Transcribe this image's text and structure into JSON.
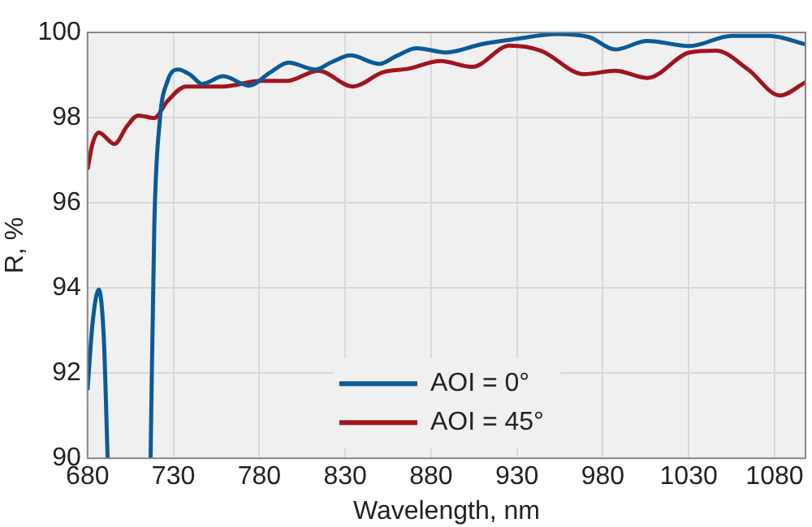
{
  "chart_data": {
    "type": "line",
    "xlabel": "Wavelength, nm",
    "ylabel": "R, %",
    "xlim": [
      680,
      1098
    ],
    "xticks": [
      680,
      730,
      780,
      830,
      880,
      930,
      980,
      1030,
      1080
    ],
    "ylim": [
      90,
      100
    ],
    "yticks": [
      90,
      92,
      94,
      96,
      98,
      100
    ],
    "grid": true,
    "legend": "bottom",
    "marker": "none",
    "line_style": "solid",
    "series": [
      {
        "name": "AOI = 0°",
        "color": "#0b5a96",
        "x": [
          680,
          683,
          686.5,
          689.5,
          691.7,
          704,
          716.7,
          718.9,
          722,
          726.6,
          732.8,
          740,
          746.7,
          759,
          774,
          786,
          797,
          812.7,
          822,
          833,
          850,
          860,
          871.7,
          888.6,
          910,
          930,
          953,
          972,
          987.3,
          1005.9,
          1030.5,
          1055,
          1077,
          1098
        ],
        "values": [
          91.6,
          93.2,
          93.96,
          92.8,
          90,
          null,
          90,
          95.5,
          97.9,
          98.86,
          99.13,
          99.0,
          98.79,
          98.97,
          98.75,
          99.05,
          99.29,
          99.13,
          99.3,
          99.46,
          99.26,
          99.45,
          99.63,
          99.53,
          99.73,
          99.85,
          99.96,
          99.89,
          99.6,
          99.8,
          99.68,
          99.92,
          99.92,
          99.72
        ]
      },
      {
        "name": "AOI = 45°",
        "color": "#a0161e",
        "x": [
          680,
          683,
          686.5,
          695.7,
          703,
          709.6,
          718.9,
          726.6,
          737.4,
          759,
          780.6,
          796,
          814.3,
          834.6,
          851.6,
          867,
          885.5,
          904,
          925.7,
          944,
          969,
          987.3,
          1005.9,
          1030.5,
          1046,
          1064.6,
          1083,
          1098
        ],
        "values": [
          96.78,
          97.4,
          97.65,
          97.38,
          97.8,
          98.05,
          97.99,
          98.39,
          98.73,
          98.73,
          98.86,
          98.86,
          99.1,
          98.73,
          99.06,
          99.15,
          99.33,
          99.19,
          99.69,
          99.57,
          99.02,
          99.1,
          98.93,
          99.53,
          99.57,
          99.13,
          98.52,
          98.83
        ]
      }
    ]
  }
}
